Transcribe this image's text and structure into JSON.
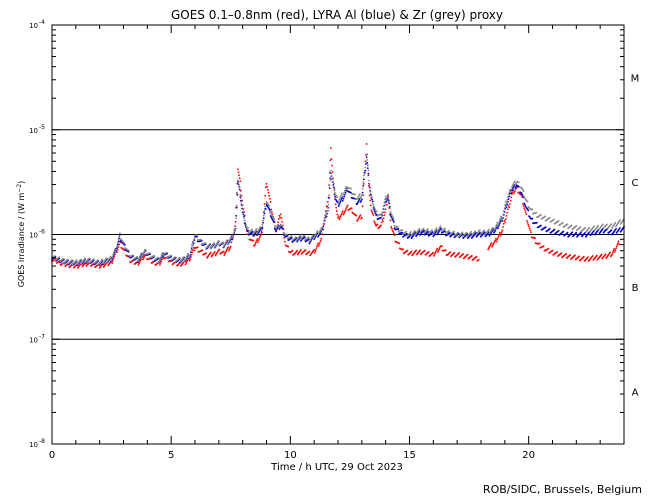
{
  "chart_data": {
    "type": "scatter",
    "title": "GOES 0.1–0.8nm (red), LYRA Al (blue) & Zr (grey) proxy",
    "xlabel": "Time / h UTC, 29 Oct 2023",
    "ylabel": "GOES Irradiance / (W m⁻²)",
    "xlim": [
      0,
      24
    ],
    "ylim_log10": [
      -8,
      -4
    ],
    "log_y": true,
    "x_ticks": [
      0,
      5,
      10,
      15,
      20
    ],
    "x_tick_labels": [
      "0",
      "5",
      "10",
      "15",
      "20"
    ],
    "y_ticks": [
      {
        "base": "10",
        "exp": "-8"
      },
      {
        "base": "10",
        "exp": "-7"
      },
      {
        "base": "10",
        "exp": "-6"
      },
      {
        "base": "10",
        "exp": "-5"
      },
      {
        "base": "10",
        "exp": "-4"
      }
    ],
    "flare_class_lines_log10": [
      -7,
      -6,
      -5
    ],
    "flare_classes": [
      {
        "label": "A",
        "log10_center": -7.5
      },
      {
        "label": "B",
        "log10_center": -6.5
      },
      {
        "label": "C",
        "log10_center": -5.5
      },
      {
        "label": "M",
        "log10_center": -4.5
      }
    ],
    "series": [
      {
        "color": "#ff0000",
        "x": [
          0,
          0.5,
          1,
          1.5,
          2,
          2.5,
          2.7,
          2.85,
          3.0,
          3.3,
          3.6,
          3.9,
          4.2,
          4.5,
          4.7,
          5.0,
          5.3,
          5.6,
          5.8,
          6.0,
          6.2,
          6.5,
          6.8,
          7.0,
          7.2,
          7.5,
          7.7,
          7.8,
          7.9,
          8.0,
          8.2,
          8.5,
          8.8,
          9.0,
          9.2,
          9.4,
          9.6,
          9.8,
          10.0,
          10.2,
          10.5,
          10.8,
          11.0,
          11.3,
          11.6,
          11.7,
          11.8,
          11.9,
          12.0,
          12.2,
          12.4,
          12.6,
          12.8,
          13.0,
          13.2,
          13.3,
          13.4,
          13.6,
          13.8,
          14.0,
          14.1,
          14.2,
          14.4,
          14.7,
          15.0,
          15.5,
          16.0,
          16.3,
          16.6,
          17.0,
          17.5,
          17.9
        ],
        "y": [
          5.8e-07,
          5.2e-07,
          5e-07,
          5.3e-07,
          5e-07,
          5.4e-07,
          6.8e-07,
          8.3e-07,
          7.2e-07,
          5.6e-07,
          5.3e-07,
          6.3e-07,
          5.5e-07,
          5.2e-07,
          6.2e-07,
          5.5e-07,
          5.2e-07,
          5.4e-07,
          6e-07,
          7.6e-07,
          7e-07,
          6.3e-07,
          6.5e-07,
          6.9e-07,
          6.6e-07,
          7.6e-07,
          1.3e-06,
          4.3e-06,
          3.1e-06,
          1.9e-06,
          1e-06,
          8e-07,
          1e-06,
          3.2e-06,
          1.8e-06,
          1.1e-06,
          1.6e-06,
          8e-07,
          6.8e-07,
          6.6e-07,
          6.9e-07,
          6.6e-07,
          6.8e-07,
          9e-07,
          2.3e-06,
          6.4e-06,
          3.4e-06,
          2e-06,
          1.4e-06,
          1.6e-06,
          1.8e-06,
          1.7e-06,
          1.4e-06,
          1.5e-06,
          7.5e-06,
          2.8e-06,
          1.7e-06,
          1.2e-06,
          1.2e-06,
          1.7e-06,
          2.4e-06,
          1.3e-06,
          9e-07,
          7e-07,
          6.6e-07,
          6.8e-07,
          6.4e-07,
          7.6e-07,
          6.5e-07,
          6.4e-07,
          6.1e-07,
          5.8e-07
        ]
      },
      {
        "color": "#ff0000",
        "x": [
          18.3,
          18.6,
          18.9,
          19.1,
          19.3,
          19.5,
          19.7,
          19.9,
          20.1,
          20.4,
          20.8,
          21.2,
          21.6,
          22.0,
          22.4,
          22.8,
          23.2,
          23.5,
          23.8
        ],
        "y": [
          7.5e-07,
          8.5e-07,
          1.1e-06,
          1.6e-06,
          2.4e-06,
          2.8e-06,
          2.3e-06,
          1.5e-06,
          1e-06,
          8e-07,
          7e-07,
          6.5e-07,
          6.2e-07,
          6e-07,
          5.8e-07,
          6e-07,
          6.2e-07,
          6.5e-07,
          8.4e-07
        ]
      },
      {
        "color": "#0000cc",
        "x": [
          0,
          0.5,
          1,
          1.5,
          2,
          2.5,
          2.7,
          2.85,
          3.0,
          3.3,
          3.6,
          3.9,
          4.2,
          4.5,
          4.7,
          5.0,
          5.3,
          5.6,
          5.8,
          6.0,
          6.2,
          6.5,
          6.8,
          7.0,
          7.2,
          7.5,
          7.7,
          7.8,
          7.9,
          8.0,
          8.2,
          8.5,
          8.8,
          9.0,
          9.2,
          9.4,
          9.6,
          9.8,
          10.0,
          10.2,
          10.5,
          10.8,
          11.0,
          11.3,
          11.6,
          11.7,
          11.8,
          11.9,
          12.0,
          12.2,
          12.4,
          12.6,
          12.8,
          13.0,
          13.2,
          13.3,
          13.4,
          13.6,
          13.8,
          14.0,
          14.1,
          14.2,
          14.4,
          14.7,
          15.0,
          15.5,
          16.0,
          16.3,
          16.6,
          17.0,
          17.5,
          17.9,
          18.3,
          18.6,
          18.9,
          19.1,
          19.3,
          19.5,
          19.7,
          19.9,
          20.1,
          20.4,
          20.8,
          21.2,
          21.6,
          22.0,
          22.4,
          22.8,
          23.2,
          23.5,
          23.8,
          24.0
        ],
        "y": [
          6e-07,
          5.5e-07,
          5.3e-07,
          5.6e-07,
          5.3e-07,
          5.8e-07,
          7.2e-07,
          9.5e-07,
          8e-07,
          6.1e-07,
          5.7e-07,
          6.8e-07,
          6e-07,
          5.6e-07,
          6.6e-07,
          5.9e-07,
          5.6e-07,
          5.8e-07,
          6.4e-07,
          9.6e-07,
          8.6e-07,
          7.6e-07,
          7.8e-07,
          8.2e-07,
          7.9e-07,
          8.8e-07,
          1.1e-06,
          3.2e-06,
          2.4e-06,
          1.6e-06,
          1.05e-06,
          1e-06,
          1.1e-06,
          2e-06,
          1.5e-06,
          1.1e-06,
          1.2e-06,
          9.5e-07,
          9e-07,
          8.8e-07,
          9.2e-07,
          8.6e-07,
          9.4e-07,
          1.05e-06,
          1.8e-06,
          4e-06,
          2.9e-06,
          2.2e-06,
          1.9e-06,
          2.2e-06,
          2.7e-06,
          2.3e-06,
          2e-06,
          2.2e-06,
          5.5e-06,
          3.2e-06,
          2.2e-06,
          1.5e-06,
          1.4e-06,
          2.1e-06,
          2.3e-06,
          1.6e-06,
          1.15e-06,
          1e-06,
          9.5e-07,
          1.05e-06,
          1e-06,
          1.1e-06,
          1e-06,
          9.8e-07,
          9.6e-07,
          1e-06,
          1e-06,
          1.1e-06,
          1.4e-06,
          2e-06,
          2.7e-06,
          3e-06,
          2.5e-06,
          1.8e-06,
          1.4e-06,
          1.2e-06,
          1.1e-06,
          1.05e-06,
          1e-06,
          1e-06,
          1e-06,
          1.05e-06,
          1.1e-06,
          1.05e-06,
          1.1e-06,
          1.15e-06
        ]
      },
      {
        "color": "#888888",
        "x": [
          0,
          0.5,
          1,
          1.5,
          2,
          2.5,
          2.7,
          2.85,
          3.0,
          3.3,
          3.6,
          3.9,
          4.2,
          4.5,
          4.7,
          5.0,
          5.3,
          5.6,
          5.8,
          6.0,
          6.2,
          6.5,
          6.8,
          7.0,
          7.2,
          7.5,
          7.7,
          7.8,
          7.9,
          8.0,
          8.2,
          8.5,
          8.8,
          9.0,
          9.2,
          9.4,
          9.6,
          9.8,
          10.0,
          10.2,
          10.5,
          10.8,
          11.0,
          11.3,
          11.6,
          11.7,
          11.8,
          11.9,
          12.0,
          12.2,
          12.4,
          12.6,
          12.8,
          13.0,
          13.2,
          13.3,
          13.4,
          13.6,
          13.8,
          14.0,
          14.1,
          14.2,
          14.4,
          14.7,
          15.0,
          15.5,
          16.0,
          16.3,
          16.6,
          17.0,
          17.5,
          17.9,
          18.3,
          18.6,
          18.9,
          19.1,
          19.3,
          19.5,
          19.7,
          19.9,
          20.1,
          20.4,
          20.8,
          21.2,
          21.6,
          22.0,
          22.4,
          22.8,
          23.2,
          23.5,
          23.8,
          24.0
        ],
        "y": [
          6.1e-07,
          5.6e-07,
          5.4e-07,
          5.7e-07,
          5.4e-07,
          5.9e-07,
          7.4e-07,
          9.8e-07,
          8.2e-07,
          6.2e-07,
          5.8e-07,
          6.9e-07,
          6.1e-07,
          5.7e-07,
          6.7e-07,
          6e-07,
          5.7e-07,
          5.9e-07,
          6.5e-07,
          9.8e-07,
          8.8e-07,
          7.7e-07,
          7.9e-07,
          8.3e-07,
          8e-07,
          9e-07,
          1.15e-06,
          3.3e-06,
          2.5e-06,
          1.7e-06,
          1.1e-06,
          1.05e-06,
          1.15e-06,
          2.1e-06,
          1.6e-06,
          1.15e-06,
          1.25e-06,
          9.8e-07,
          9.3e-07,
          9e-07,
          9.5e-07,
          8.9e-07,
          9.7e-07,
          1.1e-06,
          1.9e-06,
          4.2e-06,
          3.1e-06,
          2.4e-06,
          2.1e-06,
          2.4e-06,
          2.9e-06,
          2.5e-06,
          2.2e-06,
          2.4e-06,
          5.8e-06,
          3.4e-06,
          2.3e-06,
          1.6e-06,
          1.5e-06,
          2.2e-06,
          2.4e-06,
          1.7e-06,
          1.2e-06,
          1.05e-06,
          1e-06,
          1.1e-06,
          1.05e-06,
          1.15e-06,
          1.05e-06,
          1e-06,
          1e-06,
          1.05e-06,
          1.05e-06,
          1.15e-06,
          1.5e-06,
          2.2e-06,
          2.9e-06,
          3.2e-06,
          2.8e-06,
          2.1e-06,
          1.7e-06,
          1.5e-06,
          1.4e-06,
          1.3e-06,
          1.2e-06,
          1.15e-06,
          1.1e-06,
          1.15e-06,
          1.2e-06,
          1.2e-06,
          1.3e-06,
          1.35e-06
        ]
      }
    ]
  },
  "credit": "ROB/SIDC, Brussels, Belgium"
}
